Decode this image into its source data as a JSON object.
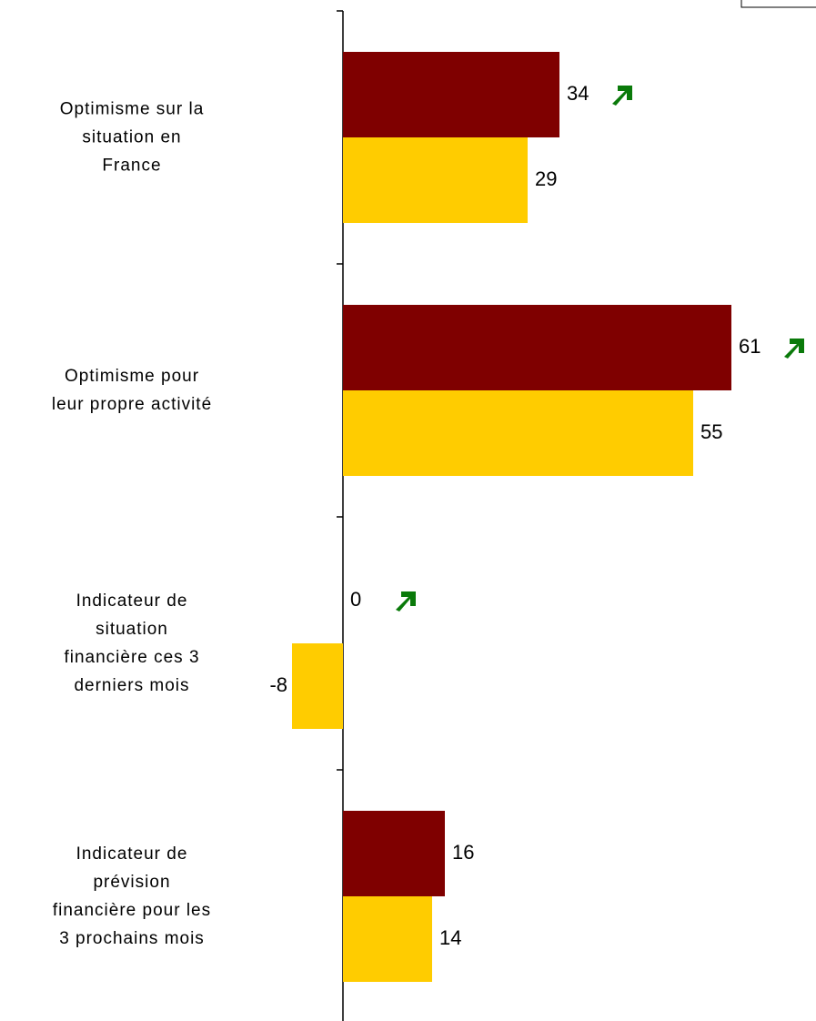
{
  "chart_data": {
    "type": "hbar",
    "categories": [
      "Optimisme sur la\nsituation en\nFrance",
      "Optimisme pour\nleur propre activité",
      "Indicateur de\nsituation\nfinancière ces 3\nderniers mois",
      "Indicateur de\nprévision\nfinancière pour les\n3 prochains mois"
    ],
    "series": [
      {
        "color": "#7f0000",
        "values": [
          34,
          61,
          0,
          16
        ],
        "trend": [
          "up",
          "up",
          "up",
          null
        ],
        "trend_color": "#0a7a0a"
      },
      {
        "color": "#ffcc00",
        "values": [
          29,
          55,
          -8,
          14
        ]
      }
    ],
    "xlim": [
      -20,
      70
    ]
  }
}
